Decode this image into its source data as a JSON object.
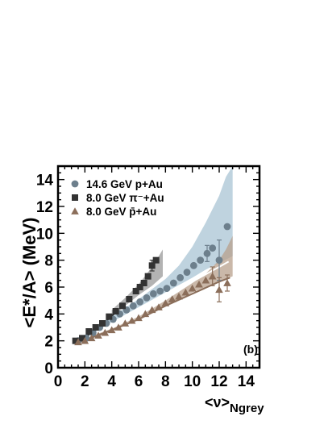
{
  "chart_data": {
    "type": "scatter",
    "xlabel": "<ν>",
    "xlabel_subscript": "Ngrey",
    "ylabel": "<E*/A> (MeV)",
    "panel_label": "(b)",
    "xlim": [
      0,
      15
    ],
    "ylim": [
      0,
      15
    ],
    "x_ticks": [
      0,
      2,
      4,
      6,
      8,
      10,
      12,
      14
    ],
    "y_ticks": [
      0,
      2,
      4,
      6,
      8,
      10,
      12,
      14
    ],
    "legend_position": "top-left",
    "series": [
      {
        "name": "14.6 GeV p+Au",
        "marker": "circle",
        "color": "#6d7f8c",
        "band_color": "#a9c4d4",
        "points": [
          [
            1.5,
            2.0
          ],
          [
            2.1,
            2.2
          ],
          [
            2.6,
            2.6
          ],
          [
            3.1,
            3.0
          ],
          [
            3.6,
            3.3
          ],
          [
            4.1,
            3.6
          ],
          [
            4.6,
            4.0
          ],
          [
            5.1,
            4.3
          ],
          [
            5.6,
            4.6
          ],
          [
            6.1,
            4.9
          ],
          [
            6.6,
            5.2
          ],
          [
            7.1,
            5.5
          ],
          [
            7.6,
            5.7
          ],
          [
            8.1,
            5.9
          ],
          [
            8.6,
            6.3
          ],
          [
            9.1,
            6.7
          ],
          [
            9.6,
            7.1
          ],
          [
            10.1,
            7.6
          ],
          [
            10.6,
            8.0
          ],
          [
            11.1,
            8.5
          ],
          [
            11.5,
            8.9
          ],
          [
            12.0,
            8.0
          ],
          [
            12.6,
            10.5
          ]
        ],
        "band_lower": [
          [
            1.5,
            1.9
          ],
          [
            4.0,
            3.4
          ],
          [
            6.0,
            4.5
          ],
          [
            8.0,
            5.6
          ],
          [
            10.0,
            6.7
          ],
          [
            11.0,
            7.3
          ],
          [
            12.0,
            7.8
          ],
          [
            13.0,
            8.3
          ]
        ],
        "band_upper": [
          [
            1.5,
            2.1
          ],
          [
            4.0,
            3.8
          ],
          [
            6.0,
            5.1
          ],
          [
            8.0,
            6.6
          ],
          [
            9.0,
            7.6
          ],
          [
            10.0,
            9.0
          ],
          [
            11.0,
            10.8
          ],
          [
            12.0,
            12.8
          ],
          [
            12.5,
            14.2
          ],
          [
            13.0,
            15.0
          ]
        ]
      },
      {
        "name": "8.0 GeV π⁻+Au",
        "marker": "square",
        "color": "#333333",
        "band_color": "#9a9a9a",
        "points": [
          [
            1.3,
            2.0
          ],
          [
            1.8,
            2.2
          ],
          [
            2.3,
            2.7
          ],
          [
            2.8,
            3.0
          ],
          [
            3.3,
            3.3
          ],
          [
            3.8,
            3.8
          ],
          [
            4.3,
            4.2
          ],
          [
            4.8,
            4.6
          ],
          [
            5.3,
            5.1
          ],
          [
            5.8,
            5.7
          ],
          [
            6.1,
            6.0
          ],
          [
            6.4,
            6.3
          ],
          [
            6.7,
            6.8
          ],
          [
            7.0,
            7.6
          ],
          [
            7.3,
            8.0
          ]
        ],
        "band_lower": [
          [
            4.0,
            3.8
          ],
          [
            5.0,
            4.6
          ],
          [
            6.0,
            5.4
          ],
          [
            7.0,
            6.1
          ],
          [
            7.8,
            6.8
          ]
        ],
        "band_upper": [
          [
            4.0,
            4.3
          ],
          [
            5.0,
            5.2
          ],
          [
            6.0,
            6.2
          ],
          [
            7.0,
            7.5
          ],
          [
            7.5,
            8.3
          ],
          [
            7.8,
            8.8
          ]
        ]
      },
      {
        "name": "8.0 GeV p̄+Au",
        "marker": "triangle",
        "color": "#8b6e5a",
        "band_color": "#b8a08c",
        "points": [
          [
            1.5,
            1.9
          ],
          [
            2.0,
            2.0
          ],
          [
            2.5,
            2.2
          ],
          [
            3.0,
            2.4
          ],
          [
            3.5,
            2.6
          ],
          [
            4.0,
            2.8
          ],
          [
            4.5,
            3.0
          ],
          [
            5.0,
            3.3
          ],
          [
            5.5,
            3.5
          ],
          [
            6.0,
            3.7
          ],
          [
            6.5,
            4.0
          ],
          [
            7.0,
            4.3
          ],
          [
            7.5,
            4.5
          ],
          [
            8.0,
            4.8
          ],
          [
            8.5,
            5.1
          ],
          [
            9.0,
            5.3
          ],
          [
            9.5,
            5.6
          ],
          [
            10.0,
            5.9
          ],
          [
            10.5,
            6.2
          ],
          [
            11.0,
            6.5
          ],
          [
            11.5,
            6.8
          ],
          [
            12.0,
            5.8
          ],
          [
            12.6,
            6.3
          ]
        ],
        "band_lower": [
          [
            1.5,
            1.8
          ],
          [
            4.0,
            2.7
          ],
          [
            6.0,
            3.6
          ],
          [
            8.0,
            4.6
          ],
          [
            10.0,
            5.6
          ],
          [
            11.0,
            6.0
          ],
          [
            12.0,
            6.4
          ],
          [
            13.0,
            6.8
          ]
        ],
        "band_upper": [
          [
            1.5,
            2.0
          ],
          [
            4.0,
            2.9
          ],
          [
            6.0,
            3.8
          ],
          [
            8.0,
            5.0
          ],
          [
            10.0,
            6.3
          ],
          [
            11.0,
            7.0
          ],
          [
            12.0,
            8.0
          ],
          [
            12.5,
            8.8
          ],
          [
            13.0,
            9.8
          ]
        ]
      }
    ],
    "error_bars": [
      {
        "series": "8.0 GeV π⁻+Au",
        "x": 7.0,
        "y": 7.6,
        "err": 0.4
      },
      {
        "series": "14.6 GeV p+Au",
        "x": 11.1,
        "y": 8.5,
        "err": 0.6
      },
      {
        "series": "14.6 GeV p+Au",
        "x": 12.0,
        "y": 8.0,
        "err": 1.5
      },
      {
        "series": "8.0 GeV p̄+Au",
        "x": 11.5,
        "y": 6.8,
        "err": 0.7
      },
      {
        "series": "8.0 GeV p̄+Au",
        "x": 12.0,
        "y": 5.8,
        "err": 0.9
      },
      {
        "series": "8.0 GeV p̄+Au",
        "x": 12.6,
        "y": 6.3,
        "err": 0.6
      }
    ],
    "fit_lines": [
      {
        "series": "14.6 GeV p+Au",
        "color": "#ffffff",
        "points": [
          [
            1.6,
            1.9
          ],
          [
            4.0,
            3.2
          ],
          [
            6.0,
            4.3
          ],
          [
            8.0,
            5.4
          ],
          [
            10.0,
            6.4
          ],
          [
            12.0,
            7.5
          ],
          [
            12.7,
            7.9
          ]
        ]
      },
      {
        "series": "8.0 GeV p̄+Au",
        "color": "#8b6e5a",
        "points": [
          [
            1.6,
            1.9
          ],
          [
            4.0,
            2.8
          ],
          [
            6.0,
            3.6
          ],
          [
            8.0,
            4.6
          ],
          [
            10.0,
            5.5
          ],
          [
            12.0,
            6.4
          ],
          [
            12.8,
            6.7
          ]
        ]
      },
      {
        "series": "8.0 GeV π⁻+Au",
        "color": "#2a2a2a",
        "points": [
          [
            1.6,
            2.0
          ],
          [
            2.5,
            2.6
          ],
          [
            3.5,
            3.4
          ],
          [
            4.5,
            4.3
          ]
        ]
      }
    ]
  }
}
